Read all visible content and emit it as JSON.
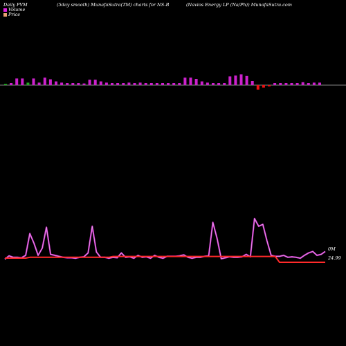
{
  "header": {
    "left": "Daily PVM",
    "middle": "(5day smooth) MunafaSutra(TM) charts for NS-B",
    "right": "(Navios Energy LP (Na/Ph)) MunafaSutra.com"
  },
  "legend": {
    "volume_label": "Volume",
    "price_label": "Price",
    "volume_color": "#e01fe0",
    "price_color": "#e8a070"
  },
  "colors": {
    "background": "#000000",
    "baseline": "#888888",
    "bar_pos": "#cc22cc",
    "bar_neg": "#ee1111",
    "bar_small": "#22aa22",
    "price_line": "#ff2a2a",
    "volume_line": "#cc33cc"
  },
  "chart_data": {
    "type": "bar",
    "y_right_labels": [
      "0M",
      "24.99"
    ],
    "volume_bars": [
      0.3,
      0.5,
      1.6,
      1.6,
      0.6,
      1.6,
      0.6,
      1.8,
      1.4,
      0.9,
      0.6,
      0.5,
      0.5,
      0.5,
      0.4,
      1.3,
      1.3,
      0.9,
      0.6,
      0.5,
      0.5,
      0.5,
      0.6,
      0.5,
      0.6,
      0.5,
      0.5,
      0.5,
      0.5,
      0.5,
      0.5,
      0.5,
      1.8,
      1.8,
      1.5,
      0.9,
      0.6,
      0.5,
      0.5,
      0.5,
      2.1,
      2.3,
      2.6,
      2.2,
      1.0,
      -1.1,
      -0.6,
      -0.3,
      0.5,
      0.5,
      0.5,
      0.5,
      0.5,
      0.7,
      0.5,
      0.6,
      0.6
    ],
    "bar_colors": [
      "g",
      "p",
      "p",
      "p",
      "g",
      "p",
      "p",
      "p",
      "p",
      "p",
      "p",
      "p",
      "p",
      "p",
      "p",
      "p",
      "p",
      "p",
      "p",
      "p",
      "p",
      "p",
      "p",
      "p",
      "p",
      "p",
      "p",
      "p",
      "p",
      "p",
      "p",
      "p",
      "p",
      "p",
      "p",
      "p",
      "p",
      "p",
      "p",
      "p",
      "p",
      "p",
      "p",
      "p",
      "p",
      "r",
      "r",
      "r",
      "p",
      "p",
      "p",
      "p",
      "p",
      "p",
      "p",
      "p",
      "p"
    ],
    "volume_line": [
      0.2,
      0.9,
      0.6,
      0.6,
      0.5,
      1.0,
      5.5,
      3.5,
      1.0,
      2.5,
      6.8,
      1.2,
      1.0,
      0.8,
      0.6,
      0.5,
      0.5,
      0.4,
      0.6,
      0.7,
      1.5,
      7.0,
      1.7,
      0.6,
      0.6,
      0.4,
      0.6,
      0.5,
      1.5,
      0.6,
      0.7,
      0.4,
      1.0,
      0.6,
      0.7,
      0.4,
      1.0,
      0.6,
      0.4,
      0.8,
      0.8,
      0.8,
      0.9,
      1.1,
      0.6,
      0.4,
      0.6,
      0.6,
      0.8,
      0.9,
      7.8,
      4.5,
      0.3,
      0.5,
      0.7,
      0.6,
      0.6,
      0.7,
      1.2,
      0.7,
      8.6,
      7.0,
      7.4,
      4.0,
      1.0,
      0.8,
      0.8,
      1.0,
      0.6,
      0.7,
      0.6,
      0.4,
      1.0,
      1.5,
      1.8,
      1.0,
      1.2,
      1.8
    ],
    "price_line": [
      25.0,
      25.0,
      25.0,
      25.0,
      25.0,
      25.0,
      25.1,
      25.1,
      25.1,
      25.1,
      25.1,
      25.1,
      25.1,
      25.1,
      25.1,
      25.1,
      25.1,
      25.1,
      25.1,
      25.1,
      25.1,
      25.1,
      25.1,
      25.1,
      25.1,
      25.1,
      25.2,
      25.2,
      25.2,
      25.2,
      25.2,
      25.2,
      25.2,
      25.2,
      25.2,
      25.2,
      25.2,
      25.2,
      25.2,
      25.2,
      25.2,
      25.2,
      25.2,
      25.2,
      25.2,
      25.2,
      25.2,
      25.2,
      25.2,
      25.2,
      25.2,
      25.2,
      25.2,
      25.2,
      25.2,
      25.2,
      25.2,
      25.2,
      25.2,
      25.2,
      25.2,
      25.2,
      25.2,
      25.2,
      25.2,
      25.2,
      24.5,
      24.5,
      24.5,
      24.5,
      24.5,
      24.5,
      24.5,
      24.5,
      24.5,
      24.5,
      24.5,
      24.5
    ]
  }
}
